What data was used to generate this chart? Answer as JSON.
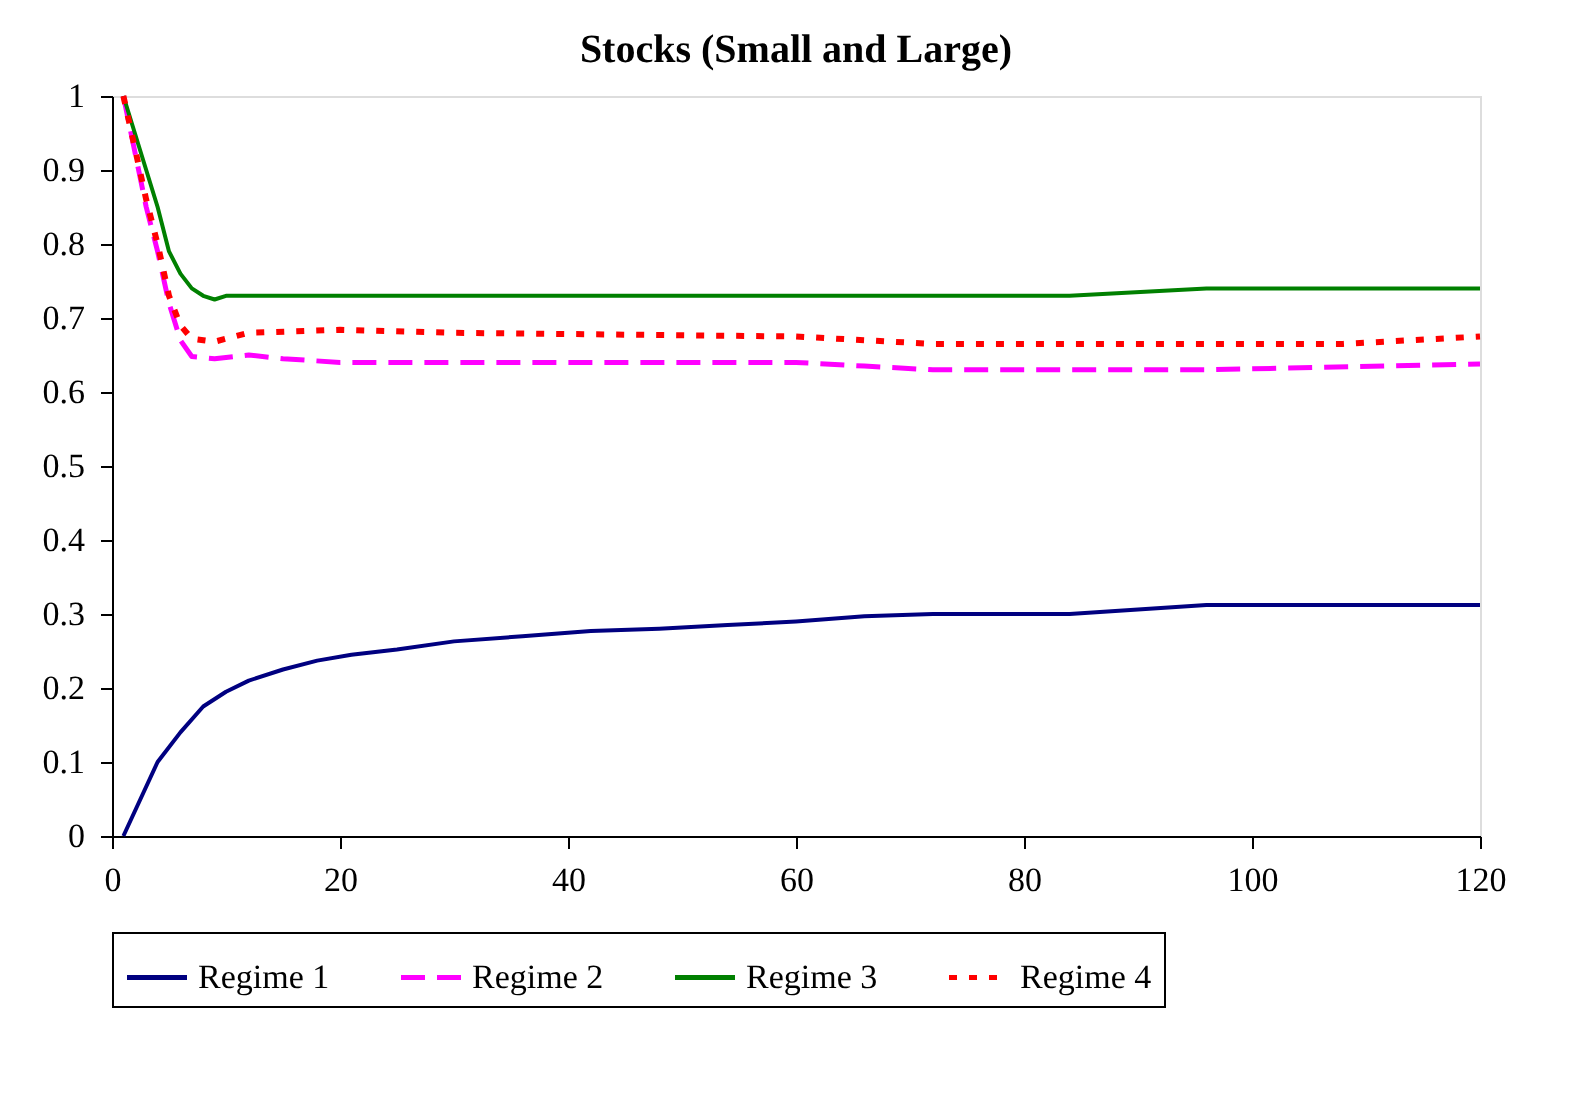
{
  "chart_data": {
    "type": "line",
    "title": "Stocks (Small and Large)",
    "xlim": [
      0,
      120
    ],
    "xticks": [
      0,
      20,
      40,
      60,
      80,
      100,
      120
    ],
    "ylim": [
      0,
      1
    ],
    "yticks": [
      0,
      0.1,
      0.2,
      0.3,
      0.4,
      0.5,
      0.6,
      0.7,
      0.8,
      0.9,
      1
    ],
    "grid": false,
    "legend": "bottom",
    "marker": "none",
    "series": [
      {
        "name": "Regime 1",
        "color": "#000080",
        "line_style": "solid",
        "x": [
          1,
          4,
          6,
          8,
          10,
          12,
          15,
          18,
          21,
          25,
          30,
          36,
          42,
          48,
          54,
          60,
          66,
          72,
          84,
          96,
          108,
          120
        ],
        "values": [
          0,
          0.1,
          0.14,
          0.175,
          0.195,
          0.21,
          0.225,
          0.237,
          0.245,
          0.252,
          0.263,
          0.27,
          0.277,
          0.28,
          0.285,
          0.29,
          0.297,
          0.3,
          0.3,
          0.312,
          0.312,
          0.312
        ]
      },
      {
        "name": "Regime 2",
        "color": "#ff00ff",
        "line_style": "dashed",
        "x": [
          1,
          3,
          4,
          5,
          6,
          7,
          9,
          12,
          15,
          20,
          30,
          60,
          66,
          72,
          96,
          120
        ],
        "values": [
          1,
          0.85,
          0.79,
          0.72,
          0.67,
          0.648,
          0.645,
          0.65,
          0.645,
          0.64,
          0.64,
          0.64,
          0.635,
          0.63,
          0.63,
          0.638
        ]
      },
      {
        "name": "Regime 3",
        "color": "#008000",
        "line_style": "solid",
        "x": [
          1,
          3,
          4,
          5,
          6,
          7,
          8,
          9,
          10,
          84,
          96,
          120
        ],
        "values": [
          1,
          0.9,
          0.85,
          0.79,
          0.76,
          0.74,
          0.73,
          0.725,
          0.73,
          0.73,
          0.74,
          0.74
        ]
      },
      {
        "name": "Regime 4",
        "color": "#ff0000",
        "line_style": "dotted",
        "x": [
          1,
          3,
          4,
          5,
          6,
          7,
          9,
          12,
          20,
          30,
          60,
          72,
          108,
          120
        ],
        "values": [
          1,
          0.86,
          0.8,
          0.73,
          0.69,
          0.672,
          0.668,
          0.68,
          0.684,
          0.68,
          0.675,
          0.665,
          0.665,
          0.675
        ]
      }
    ]
  }
}
